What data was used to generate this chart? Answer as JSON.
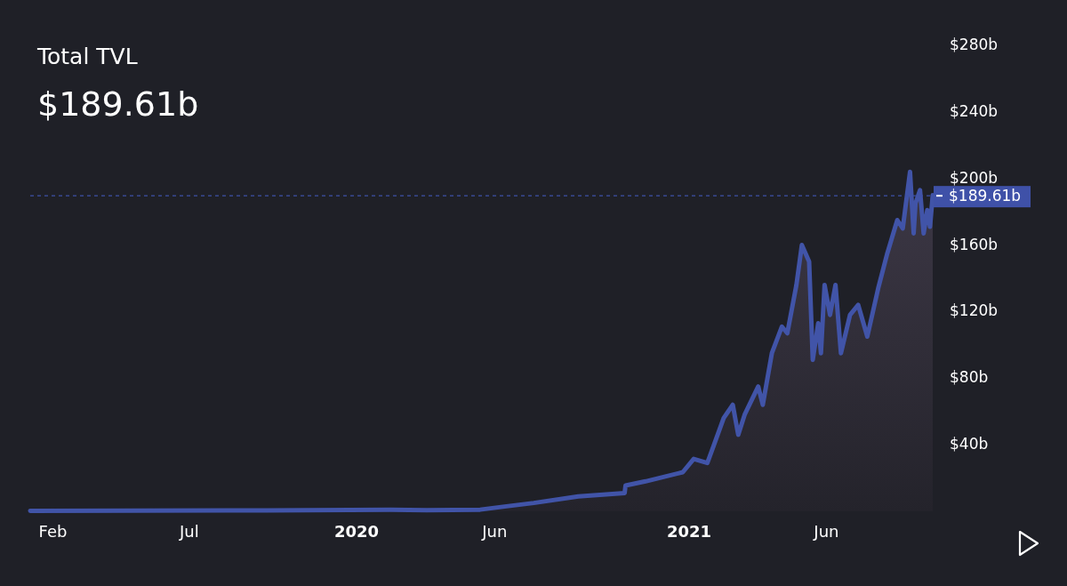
{
  "chart_data": {
    "type": "area",
    "title": "Total TVL",
    "subtitle": "$189.61b",
    "x": [
      "2019-01-07",
      "2019-09-24",
      "2020-02-08",
      "2020-03-18",
      "2020-05-16",
      "2020-06-14",
      "2020-07-14",
      "2020-09-01",
      "2020-10-22",
      "2020-10-23",
      "2020-11-14",
      "2020-12-25",
      "2021-01-06",
      "2021-01-21",
      "2021-01-28",
      "2021-02-08",
      "2021-02-18",
      "2021-02-24",
      "2021-03-03",
      "2021-03-18",
      "2021-03-23",
      "2021-04-02",
      "2021-04-13",
      "2021-04-19",
      "2021-04-29",
      "2021-05-05",
      "2021-05-13",
      "2021-05-17",
      "2021-05-23",
      "2021-05-26",
      "2021-05-30",
      "2021-06-05",
      "2021-06-11",
      "2021-06-17",
      "2021-06-27",
      "2021-07-06",
      "2021-07-16",
      "2021-07-28",
      "2021-08-07",
      "2021-08-18",
      "2021-08-24",
      "2021-09-01",
      "2021-09-05",
      "2021-09-07",
      "2021-09-12",
      "2021-09-16",
      "2021-09-20",
      "2021-09-23",
      "2021-09-26"
    ],
    "series": [
      {
        "color": "#4154a8",
        "values": [
          0.3,
          0.6,
          1,
          0.7,
          1,
          3,
          5,
          9,
          11,
          15.5,
          18,
          23.5,
          31.5,
          29,
          39.5,
          56,
          64,
          46,
          58,
          75,
          64,
          95,
          111,
          107,
          136,
          160,
          150,
          91,
          113,
          95,
          136,
          118,
          136,
          95,
          118,
          124,
          105,
          134,
          155,
          175,
          170,
          204,
          167,
          185,
          193,
          167,
          181,
          171,
          190
        ]
      }
    ],
    "xlim": [
      "2019-01-07",
      "2021-09-26"
    ],
    "xticks": [
      {
        "value": "2019-02-01",
        "label": "Feb"
      },
      {
        "value": "2019-07-01",
        "label": "Jul"
      },
      {
        "value": "2020-01-01",
        "label": "2020"
      },
      {
        "value": "2020-06-01",
        "label": "Jun"
      },
      {
        "value": "2021-01-01",
        "label": "2021"
      },
      {
        "value": "2021-06-01",
        "label": "Jun"
      }
    ],
    "ylim": [
      0,
      280
    ],
    "yticks": [
      {
        "value": 40,
        "label": "$40b"
      },
      {
        "value": 80,
        "label": "$80b"
      },
      {
        "value": 120,
        "label": "$120b"
      },
      {
        "value": 160,
        "label": "$160b"
      },
      {
        "value": 200,
        "label": "$200b"
      },
      {
        "value": 240,
        "label": "$240b"
      },
      {
        "value": 280,
        "label": "$280b"
      }
    ],
    "ref_lines": [
      {
        "axis": "y",
        "value": 189.61,
        "label": "$189.61b",
        "color": "#3f51a8",
        "line_style": "dashed"
      }
    ]
  }
}
